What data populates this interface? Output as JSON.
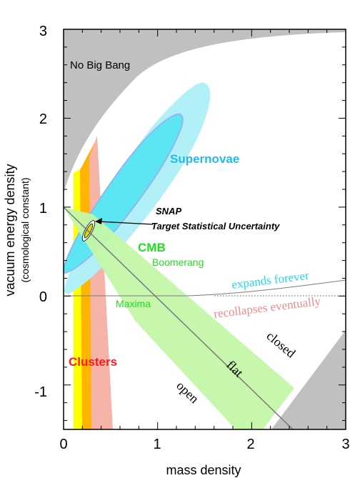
{
  "chart_data": {
    "type": "area",
    "xlabel": "mass density",
    "ylabel": "vacuum energy density",
    "ylabel_sub": "(cosmological constant)",
    "xlim": [
      0,
      3
    ],
    "ylim": [
      -1.5,
      3
    ],
    "xticks": [
      "0",
      "1",
      "2",
      "3"
    ],
    "yticks": [
      "-1",
      "0",
      "1",
      "2",
      "3"
    ],
    "regions": {
      "no_big_bang": "No Big Bang",
      "supernovae": "Supernovae",
      "cmb": "CMB",
      "boomerang": "Boomerang",
      "maxima": "Maxima",
      "clusters": "Clusters",
      "snap_line1": "SNAP",
      "snap_line2": "Target Statistical Uncertainty"
    },
    "lines": {
      "expands_forever": "expands forever",
      "recollapses_eventually": "recollapses eventually",
      "closed": "closed",
      "flat": "flat",
      "open": "open"
    },
    "colors": {
      "no_big_bang": "#c0c0c0",
      "supernovae_outer": "#b2f0f8",
      "supernovae_inner": "#5ce6f2",
      "supernovae_edge": "#8fb8f0",
      "cmb": "#c3f7a8",
      "clusters_yellow": "#ffff00",
      "clusters_orange": "#ffb400",
      "clusters_pink": "#f6b4a8",
      "snap": "#d8e000",
      "supernovae_text": "#22bbe8",
      "cmb_text": "#22dd22",
      "clusters_text": "#ff1a1a",
      "expands_text": "#22d8ee",
      "recollapse_text": "#f08a8a"
    },
    "landmarks": {
      "flat_line": [
        [
          0,
          1
        ],
        [
          2.5,
          -1.5
        ]
      ],
      "snap_center": [
        0.28,
        0.72
      ]
    }
  }
}
